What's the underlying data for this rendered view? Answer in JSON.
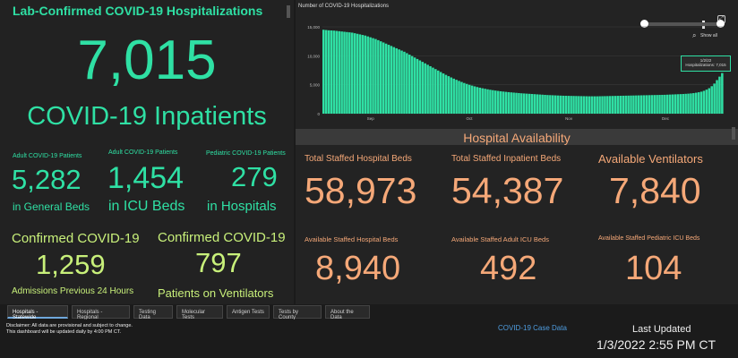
{
  "hospitalizations": {
    "title": "Lab-Confirmed COVID-19 Hospitalizations",
    "total": "7,015",
    "total_label": "COVID-19 Inpatients"
  },
  "breakdown": [
    {
      "top": "Adult COVID-19 Patients",
      "value": "5,282",
      "bottom": "in General Beds"
    },
    {
      "top": "Adult COVID-19 Patients",
      "value": "1,454",
      "bottom": "in ICU Beds"
    },
    {
      "top": "Pediatric COVID-19 Patients",
      "value": "279",
      "bottom": "in Hospitals"
    }
  ],
  "confirmed": [
    {
      "top": "Confirmed COVID-19",
      "value": "1,259",
      "bottom": "Admissions Previous 24 Hours"
    },
    {
      "top": "Confirmed COVID-19",
      "value": "797",
      "bottom": "Patients on Ventilators"
    }
  ],
  "chart": {
    "title": "Number of COVID-19 Hospitalizations",
    "show_all": "Show all",
    "tooltip_date": "1/2/22",
    "tooltip_value": "Hospitalizations: 7,015"
  },
  "chart_data": {
    "type": "bar",
    "title": "Number of COVID-19 Hospitalizations",
    "x_tick_labels": [
      "Sep",
      "Oct",
      "Nov",
      "Dec"
    ],
    "y_tick_labels": [
      "15,000",
      "10,000",
      "5,000",
      "0"
    ],
    "ylim": [
      0,
      15000
    ],
    "grid": true,
    "color": "#2fe0a4",
    "values": [
      14500,
      14450,
      14400,
      14380,
      14350,
      14300,
      14250,
      14200,
      14150,
      14100,
      14050,
      14000,
      13900,
      13800,
      13700,
      13600,
      13500,
      13350,
      13200,
      13050,
      12900,
      12700,
      12500,
      12300,
      12100,
      11900,
      11700,
      11500,
      11300,
      11100,
      10900,
      10700,
      10450,
      10200,
      9950,
      9700,
      9450,
      9200,
      8950,
      8700,
      8450,
      8200,
      7950,
      7700,
      7450,
      7200,
      6950,
      6700,
      6480,
      6260,
      6050,
      5850,
      5660,
      5480,
      5300,
      5140,
      4990,
      4850,
      4720,
      4600,
      4490,
      4390,
      4300,
      4210,
      4130,
      4060,
      3990,
      3930,
      3870,
      3820,
      3770,
      3720,
      3680,
      3640,
      3600,
      3560,
      3520,
      3490,
      3460,
      3430,
      3400,
      3370,
      3340,
      3310,
      3280,
      3250,
      3220,
      3200,
      3180,
      3160,
      3140,
      3120,
      3100,
      3090,
      3080,
      3070,
      3060,
      3050,
      3040,
      3030,
      3020,
      3010,
      3000,
      3000,
      3000,
      3000,
      3010,
      3020,
      3030,
      3040,
      3050,
      3060,
      3070,
      3080,
      3090,
      3100,
      3110,
      3120,
      3130,
      3140,
      3150,
      3160,
      3170,
      3180,
      3190,
      3200,
      3210,
      3220,
      3230,
      3240,
      3250,
      3260,
      3280,
      3300,
      3320,
      3340,
      3360,
      3380,
      3400,
      3430,
      3460,
      3500,
      3550,
      3620,
      3700,
      3800,
      3950,
      4150,
      4400,
      4750,
      5200,
      5800,
      6400,
      7015
    ]
  },
  "availability": {
    "header": "Hospital Availability",
    "top_row": [
      {
        "label": "Total Staffed Hospital Beds",
        "value": "58,973"
      },
      {
        "label": "Total Staffed Inpatient Beds",
        "value": "54,387"
      },
      {
        "label": "Available Ventilators",
        "value": "7,840"
      }
    ],
    "bottom_row": [
      {
        "label": "Available Staffed Hospital Beds",
        "value": "8,940"
      },
      {
        "label": "Available Staffed Adult ICU Beds",
        "value": "492"
      },
      {
        "label": "Available Staffed Pediatric ICU Beds",
        "value": "104"
      }
    ]
  },
  "tabs": [
    "Hospitals - Statewide",
    "Hospitals - Regional",
    "Testing Data",
    "Molecular Tests",
    "Antigen Tests",
    "Tests by County",
    "About the Data"
  ],
  "footer": {
    "disclaimer_line1": "Disclaimer: All data are provisional and subject to change.",
    "disclaimer_line2": "This dashboard will be updated daily by 4:00 PM CT.",
    "link": "COVID-19 Case Data",
    "last_updated_label": "Last Updated",
    "last_updated_value": "1/3/2022 2:55 PM CT"
  },
  "colors": {
    "green": "#2fe0a4",
    "lime": "#c8f07a",
    "orange": "#f5a878",
    "background": "#1b1b1b",
    "link": "#4f9de0"
  }
}
